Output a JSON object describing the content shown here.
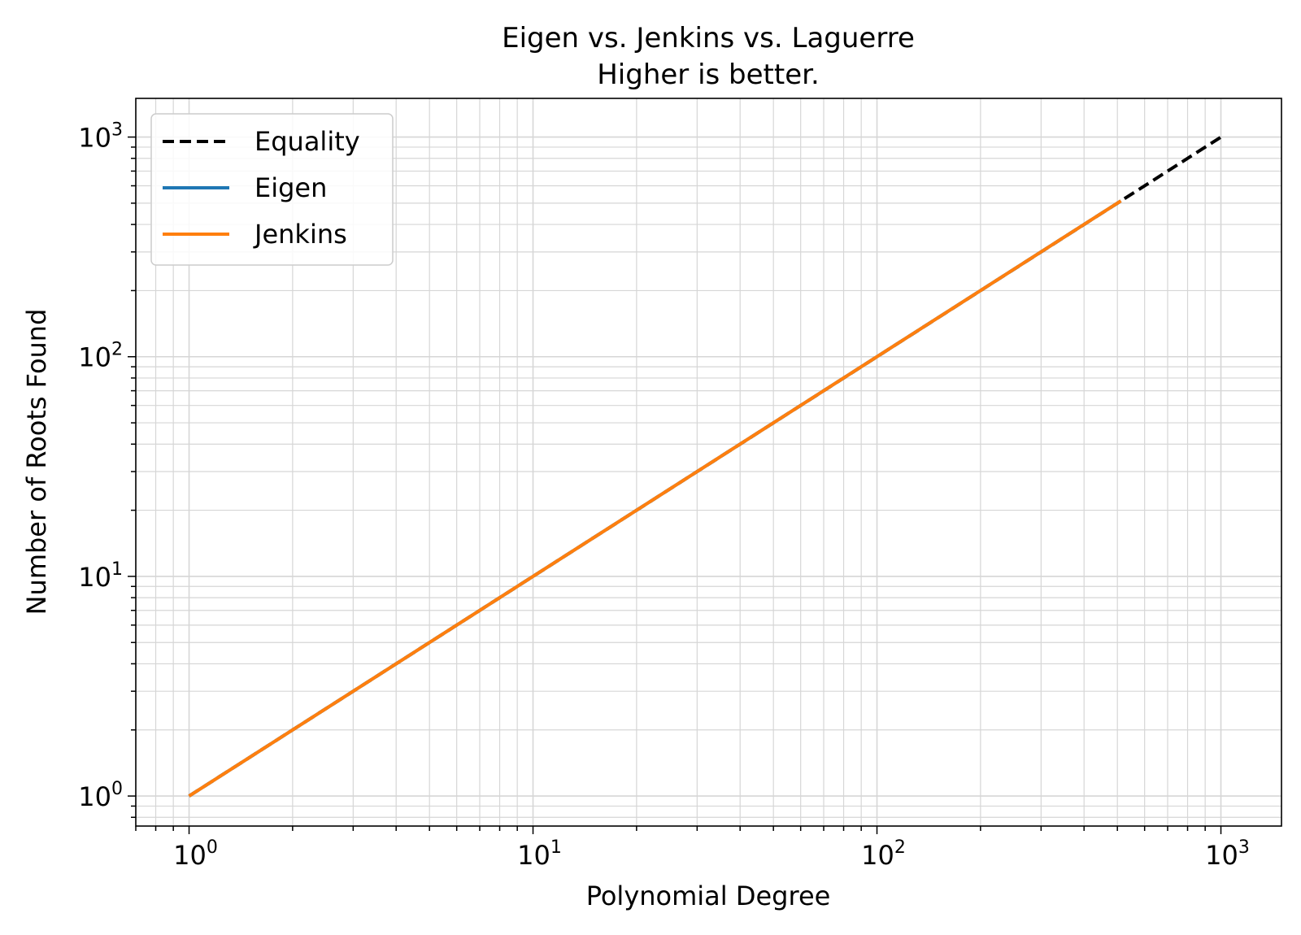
{
  "chart_data": {
    "type": "line",
    "title": "Eigen vs. Jenkins vs. Laguerre",
    "subtitle": "Higher is better.",
    "xlabel": "Polynomial Degree",
    "ylabel": "Number of Roots Found",
    "x_scale": "log",
    "y_scale": "log",
    "xlim": [
      0.7,
      1500
    ],
    "ylim": [
      0.73,
      1500
    ],
    "grid": true,
    "legend_position": "top-left",
    "x_ticks": [
      {
        "base": "10",
        "exp": "0",
        "value": 1
      },
      {
        "base": "10",
        "exp": "1",
        "value": 10
      },
      {
        "base": "10",
        "exp": "2",
        "value": 100
      },
      {
        "base": "10",
        "exp": "3",
        "value": 1000
      }
    ],
    "y_ticks": [
      {
        "base": "10",
        "exp": "0",
        "value": 1
      },
      {
        "base": "10",
        "exp": "1",
        "value": 10
      },
      {
        "base": "10",
        "exp": "2",
        "value": 100
      },
      {
        "base": "10",
        "exp": "3",
        "value": 1000
      }
    ],
    "series": [
      {
        "name": "Equality",
        "color": "#000000",
        "style": "dashed",
        "x": [
          1,
          1024
        ],
        "y": [
          1,
          1024
        ]
      },
      {
        "name": "Eigen",
        "color": "#1f77b4",
        "style": "solid",
        "x": [
          1,
          512
        ],
        "y": [
          1,
          512
        ]
      },
      {
        "name": "Jenkins",
        "color": "#ff7f0e",
        "style": "solid",
        "x": [
          1,
          512
        ],
        "y": [
          1,
          512
        ]
      }
    ]
  }
}
